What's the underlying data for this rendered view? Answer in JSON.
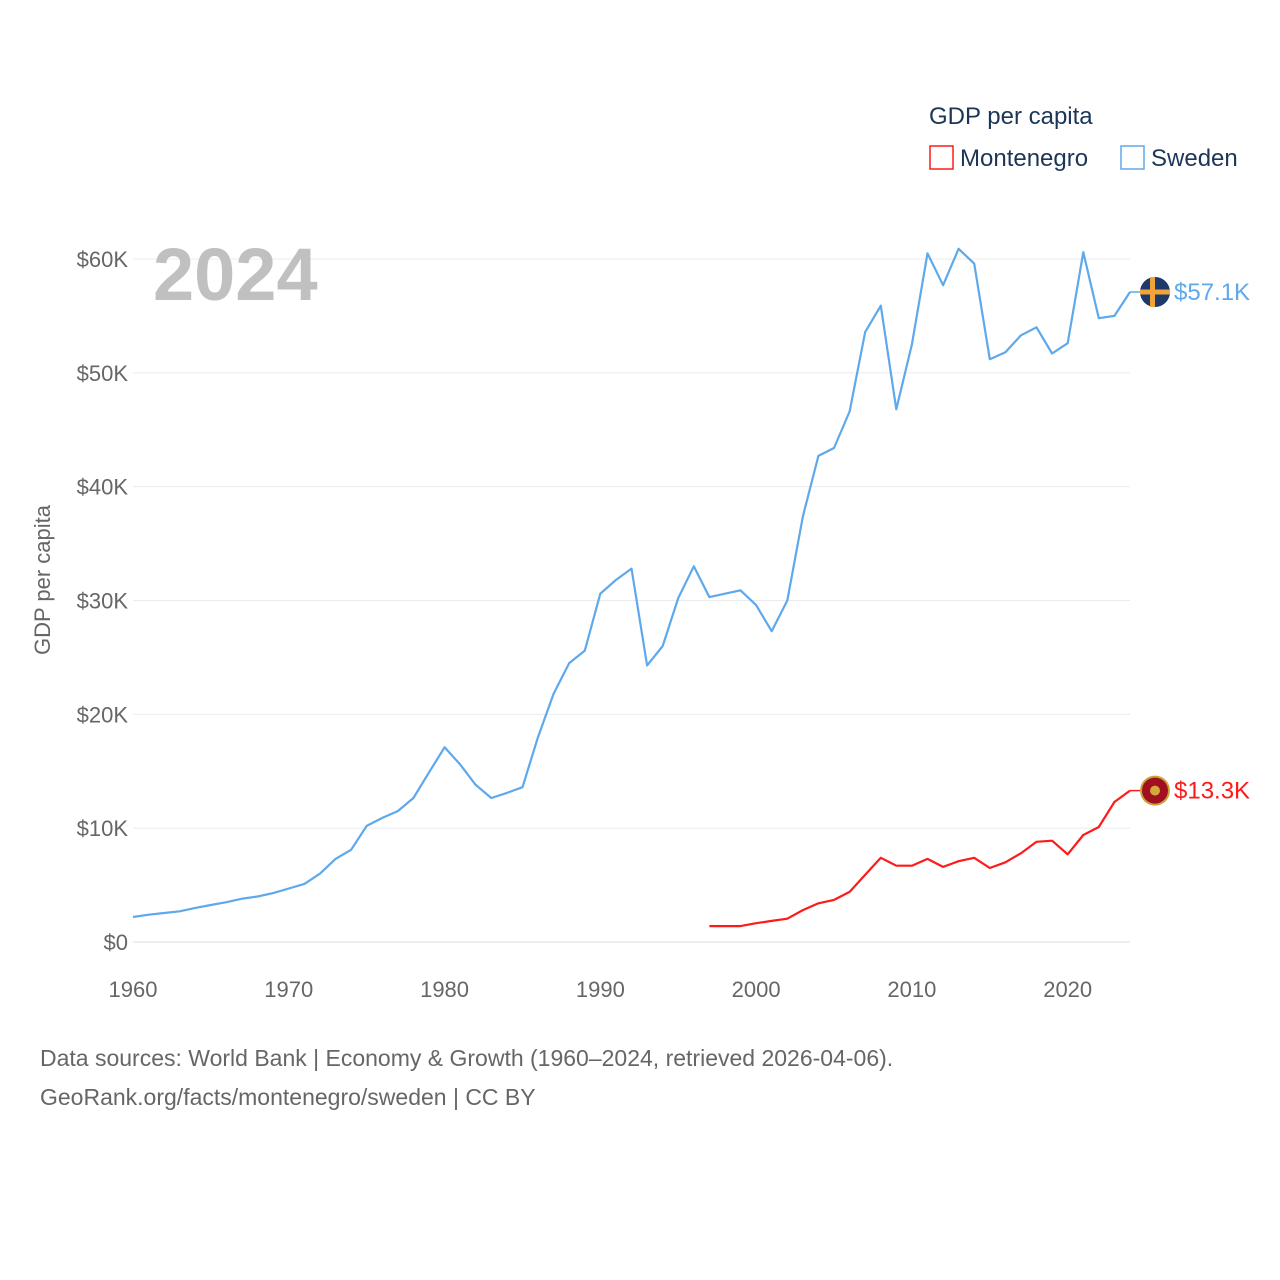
{
  "chart_data": {
    "type": "line",
    "year_label": "2024",
    "ylabel": "GDP per capita",
    "xlabel": "",
    "xlim": [
      1960,
      2024
    ],
    "ylim": [
      0,
      60000
    ],
    "x_ticks": [
      1960,
      1970,
      1980,
      1990,
      2000,
      2010,
      2020
    ],
    "x_tick_labels": [
      "1960",
      "1970",
      "1980",
      "1990",
      "2000",
      "2010",
      "2020"
    ],
    "y_ticks": [
      0,
      10000,
      20000,
      30000,
      40000,
      50000,
      60000
    ],
    "y_tick_labels": [
      "$0",
      "$10K",
      "$20K",
      "$30K",
      "$40K",
      "$50K",
      "$60K"
    ],
    "grid": true,
    "legend": {
      "title": "GDP per capita",
      "placement": "top-right"
    },
    "series": [
      {
        "name": "Montenegro",
        "color": "#ff1a1a",
        "end_label": "$13.3K",
        "start_year": 1997,
        "values": [
          1400,
          1400,
          1400,
          1650,
          1850,
          2050,
          2800,
          3400,
          3700,
          4400,
          5900,
          7400,
          6700,
          6700,
          7300,
          6600,
          7100,
          7400,
          6500,
          7000,
          7800,
          8800,
          8900,
          7700,
          9400,
          10100,
          12300,
          13300
        ]
      },
      {
        "name": "Sweden",
        "color": "#5ea8ec",
        "end_label": "$57.1K",
        "start_year": 1960,
        "values": [
          2200,
          2400,
          2550,
          2700,
          3000,
          3250,
          3500,
          3800,
          4000,
          4300,
          4700,
          5100,
          6000,
          7300,
          8100,
          10200,
          10900,
          11500,
          12650,
          14900,
          17100,
          15600,
          13800,
          12650,
          13100,
          13600,
          18000,
          21800,
          24500,
          25600,
          30600,
          31800,
          32800,
          24300,
          26000,
          30200,
          33000,
          30300,
          30600,
          30900,
          29600,
          27300,
          30000,
          37400,
          42700,
          43400,
          46600,
          53600,
          55900,
          46800,
          52500,
          60500,
          57700,
          60900,
          59600,
          51200,
          51800,
          53300,
          54000,
          51700,
          52600,
          60600,
          54800,
          55000,
          57100
        ]
      }
    ]
  },
  "footer": {
    "line1": "Data sources: World Bank | Economy & Growth (1960–2024, retrieved 2026-04-06).",
    "line2": "GeoRank.org/facts/montenegro/sweden | CC BY"
  }
}
